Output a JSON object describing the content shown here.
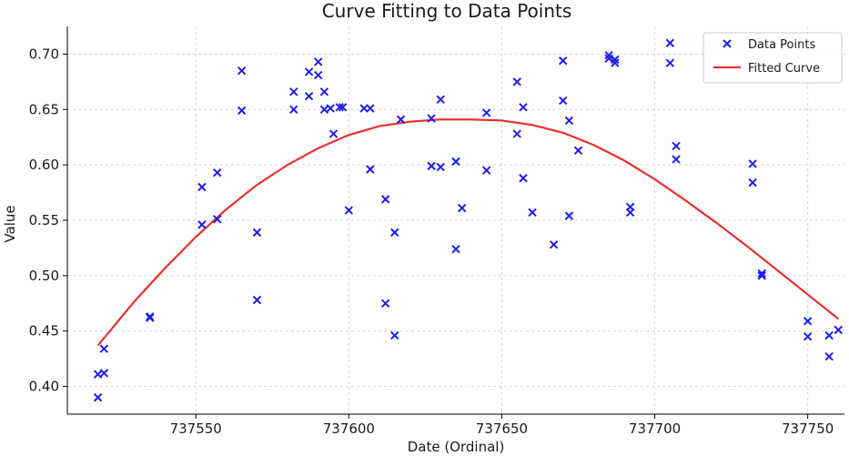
{
  "colors": {
    "points": "#1f1fe8",
    "curve": "#e83030"
  },
  "chart_data": {
    "type": "scatter",
    "title": "Curve Fitting to Data Points",
    "xlabel": "Date (Ordinal)",
    "ylabel": "Value",
    "xlim": [
      737508,
      737762
    ],
    "ylim": [
      0.375,
      0.725
    ],
    "x_ticks": [
      737550,
      737600,
      737650,
      737700,
      737750
    ],
    "y_ticks": [
      0.4,
      0.45,
      0.5,
      0.55,
      0.6,
      0.65,
      0.7
    ],
    "x_tick_labels": [
      "737550",
      "737600",
      "737650",
      "737700",
      "737750"
    ],
    "y_tick_labels": [
      "0.40",
      "0.45",
      "0.50",
      "0.55",
      "0.60",
      "0.65",
      "0.70"
    ],
    "grid": true,
    "legend_position": "top-right",
    "series": [
      {
        "name": "Data Points",
        "kind": "scatter",
        "marker": "x",
        "color": "#1f1fe8",
        "points": [
          [
            737518,
            0.39
          ],
          [
            737518,
            0.411
          ],
          [
            737520,
            0.412
          ],
          [
            737520,
            0.434
          ],
          [
            737535,
            0.462
          ],
          [
            737535,
            0.463
          ],
          [
            737552,
            0.58
          ],
          [
            737552,
            0.546
          ],
          [
            737557,
            0.593
          ],
          [
            737557,
            0.551
          ],
          [
            737565,
            0.685
          ],
          [
            737565,
            0.649
          ],
          [
            737570,
            0.539
          ],
          [
            737570,
            0.478
          ],
          [
            737582,
            0.666
          ],
          [
            737582,
            0.65
          ],
          [
            737587,
            0.684
          ],
          [
            737587,
            0.662
          ],
          [
            737590,
            0.693
          ],
          [
            737590,
            0.681
          ],
          [
            737592,
            0.666
          ],
          [
            737592,
            0.65
          ],
          [
            737594,
            0.651
          ],
          [
            737595,
            0.628
          ],
          [
            737597,
            0.652
          ],
          [
            737598,
            0.652
          ],
          [
            737600,
            0.559
          ],
          [
            737605,
            0.651
          ],
          [
            737607,
            0.651
          ],
          [
            737607,
            0.596
          ],
          [
            737612,
            0.569
          ],
          [
            737612,
            0.475
          ],
          [
            737615,
            0.539
          ],
          [
            737615,
            0.446
          ],
          [
            737617,
            0.641
          ],
          [
            737627,
            0.642
          ],
          [
            737627,
            0.599
          ],
          [
            737630,
            0.659
          ],
          [
            737630,
            0.598
          ],
          [
            737635,
            0.603
          ],
          [
            737635,
            0.524
          ],
          [
            737637,
            0.561
          ],
          [
            737645,
            0.647
          ],
          [
            737645,
            0.595
          ],
          [
            737655,
            0.675
          ],
          [
            737655,
            0.628
          ],
          [
            737657,
            0.652
          ],
          [
            737657,
            0.588
          ],
          [
            737660,
            0.557
          ],
          [
            737667,
            0.528
          ],
          [
            737670,
            0.694
          ],
          [
            737670,
            0.658
          ],
          [
            737672,
            0.64
          ],
          [
            737672,
            0.554
          ],
          [
            737675,
            0.613
          ],
          [
            737685,
            0.699
          ],
          [
            737685,
            0.696
          ],
          [
            737687,
            0.695
          ],
          [
            737687,
            0.692
          ],
          [
            737692,
            0.562
          ],
          [
            737692,
            0.557
          ],
          [
            737705,
            0.71
          ],
          [
            737705,
            0.692
          ],
          [
            737707,
            0.617
          ],
          [
            737707,
            0.605
          ],
          [
            737732,
            0.601
          ],
          [
            737732,
            0.584
          ],
          [
            737735,
            0.502
          ],
          [
            737735,
            0.5
          ],
          [
            737750,
            0.459
          ],
          [
            737750,
            0.445
          ],
          [
            737757,
            0.446
          ],
          [
            737757,
            0.427
          ],
          [
            737760,
            0.451
          ]
        ]
      },
      {
        "name": "Fitted Curve",
        "kind": "line",
        "color": "#e83030",
        "points": [
          [
            737518,
            0.437
          ],
          [
            737530,
            0.477
          ],
          [
            737540,
            0.507
          ],
          [
            737550,
            0.535
          ],
          [
            737560,
            0.56
          ],
          [
            737570,
            0.582
          ],
          [
            737580,
            0.6
          ],
          [
            737590,
            0.615
          ],
          [
            737600,
            0.627
          ],
          [
            737610,
            0.635
          ],
          [
            737620,
            0.639
          ],
          [
            737630,
            0.641
          ],
          [
            737640,
            0.641
          ],
          [
            737650,
            0.64
          ],
          [
            737660,
            0.636
          ],
          [
            737670,
            0.629
          ],
          [
            737680,
            0.618
          ],
          [
            737690,
            0.604
          ],
          [
            737700,
            0.587
          ],
          [
            737710,
            0.568
          ],
          [
            737720,
            0.548
          ],
          [
            737730,
            0.527
          ],
          [
            737740,
            0.505
          ],
          [
            737750,
            0.483
          ],
          [
            737760,
            0.461
          ]
        ]
      }
    ]
  }
}
